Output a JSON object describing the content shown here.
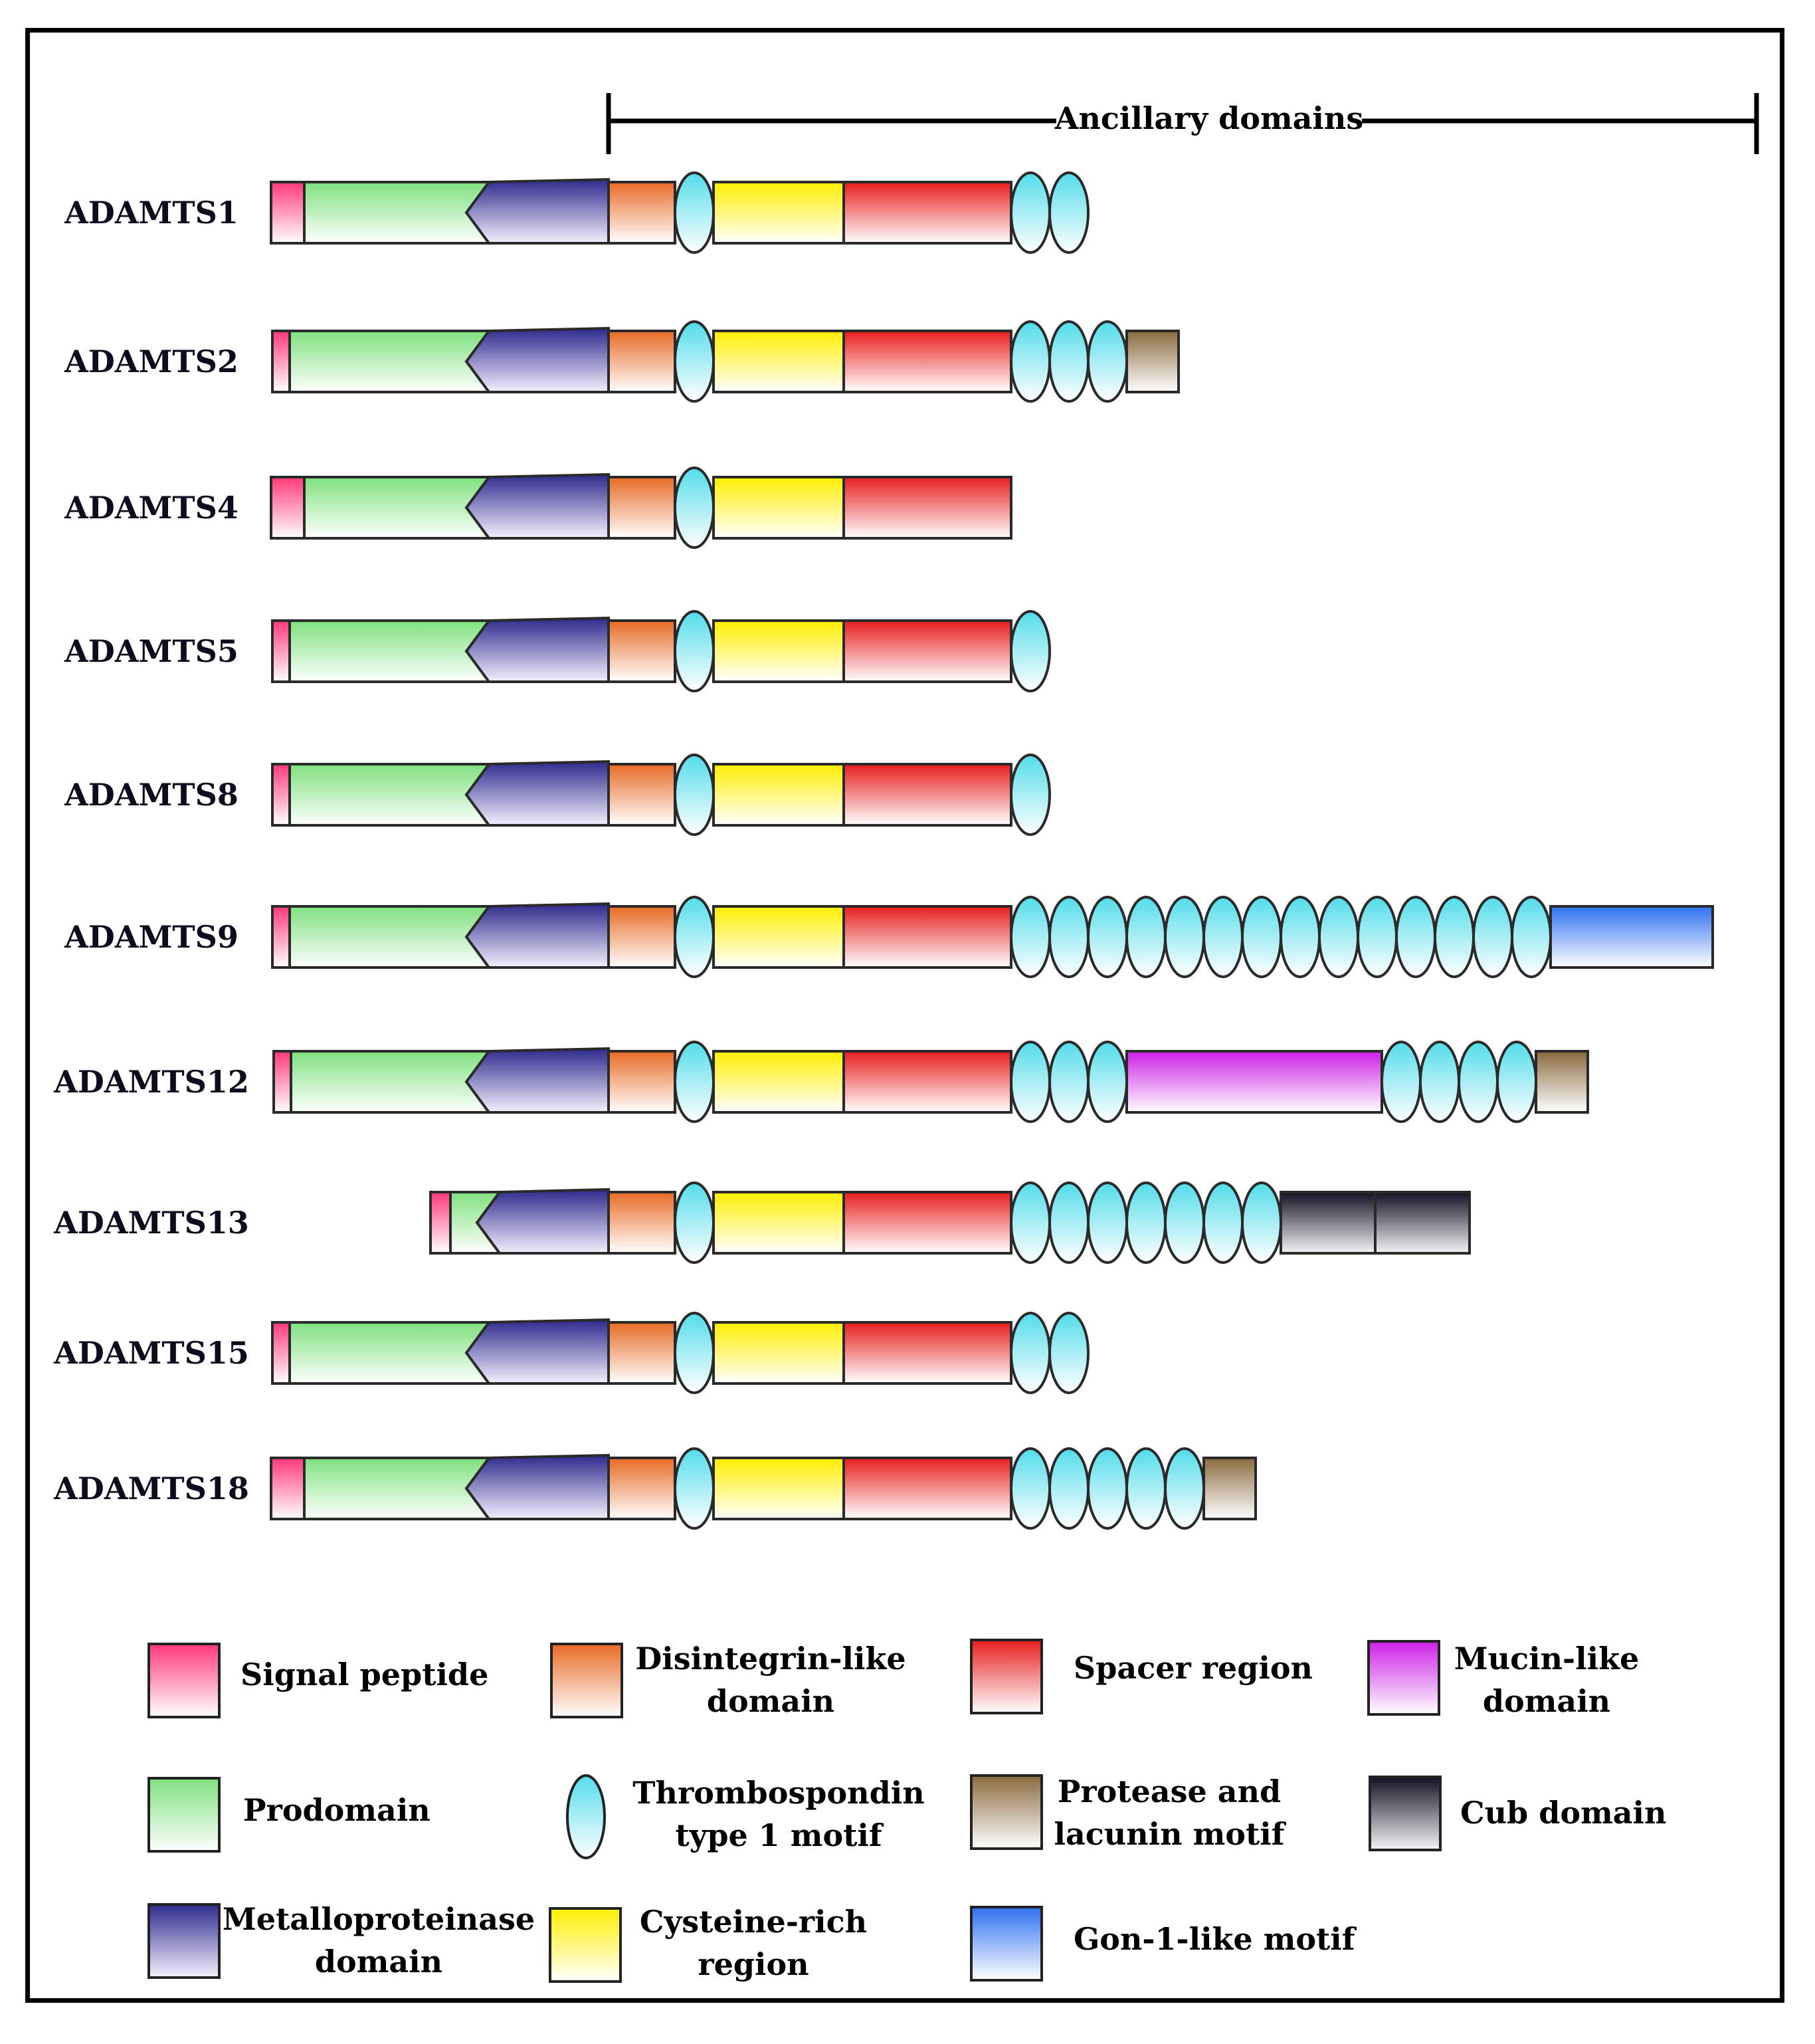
{
  "figure": {
    "ancillary_label": "Ancillary domains",
    "colors": {
      "signal_peptide": "#ff3a78",
      "prodomain": "#7fe07f",
      "metalloproteinase": "#2e2a8c",
      "disintegrin": "#e86a26",
      "cysteine_rich": "#ffee00",
      "spacer": "#e81e1e",
      "tsp1": "#53dcea",
      "plac": "#8a6a3e",
      "gon1": "#2f70f0",
      "mucin": "#cc20e6",
      "cub": "#111122"
    },
    "proteins": [
      {
        "name": "ADAMTS1",
        "domains": [
          "signal_peptide",
          "prodomain",
          "metalloproteinase",
          "disintegrin",
          "tsp1",
          "cysteine_rich",
          "spacer",
          "tsp1",
          "tsp1"
        ]
      },
      {
        "name": "ADAMTS2",
        "domains": [
          "signal_peptide",
          "prodomain",
          "metalloproteinase",
          "disintegrin",
          "tsp1",
          "cysteine_rich",
          "spacer",
          "tsp1",
          "tsp1",
          "tsp1",
          "plac"
        ]
      },
      {
        "name": "ADAMTS4",
        "domains": [
          "signal_peptide",
          "prodomain",
          "metalloproteinase",
          "disintegrin",
          "tsp1",
          "cysteine_rich",
          "spacer"
        ]
      },
      {
        "name": "ADAMTS5",
        "domains": [
          "signal_peptide",
          "prodomain",
          "metalloproteinase",
          "disintegrin",
          "tsp1",
          "cysteine_rich",
          "spacer",
          "tsp1"
        ]
      },
      {
        "name": "ADAMTS8",
        "domains": [
          "signal_peptide",
          "prodomain",
          "metalloproteinase",
          "disintegrin",
          "tsp1",
          "cysteine_rich",
          "spacer",
          "tsp1"
        ]
      },
      {
        "name": "ADAMTS9",
        "domains": [
          "signal_peptide",
          "prodomain",
          "metalloproteinase",
          "disintegrin",
          "tsp1",
          "cysteine_rich",
          "spacer",
          "tsp1",
          "tsp1",
          "tsp1",
          "tsp1",
          "tsp1",
          "tsp1",
          "tsp1",
          "tsp1",
          "tsp1",
          "tsp1",
          "tsp1",
          "tsp1",
          "tsp1",
          "tsp1",
          "gon1"
        ]
      },
      {
        "name": "ADAMTS12",
        "domains": [
          "signal_peptide",
          "prodomain",
          "metalloproteinase",
          "disintegrin",
          "tsp1",
          "cysteine_rich",
          "spacer",
          "tsp1",
          "tsp1",
          "tsp1",
          "mucin",
          "tsp1",
          "tsp1",
          "tsp1",
          "tsp1",
          "plac"
        ]
      },
      {
        "name": "ADAMTS13",
        "domains": [
          "signal_peptide",
          "prodomain",
          "metalloproteinase",
          "disintegrin",
          "tsp1",
          "cysteine_rich",
          "spacer",
          "tsp1",
          "tsp1",
          "tsp1",
          "tsp1",
          "tsp1",
          "tsp1",
          "tsp1",
          "cub",
          "cub"
        ]
      },
      {
        "name": "ADAMTS15",
        "domains": [
          "signal_peptide",
          "prodomain",
          "metalloproteinase",
          "disintegrin",
          "tsp1",
          "cysteine_rich",
          "spacer",
          "tsp1",
          "tsp1"
        ]
      },
      {
        "name": "ADAMTS18",
        "domains": [
          "signal_peptide",
          "prodomain",
          "metalloproteinase",
          "disintegrin",
          "tsp1",
          "cysteine_rich",
          "spacer",
          "tsp1",
          "tsp1",
          "tsp1",
          "tsp1",
          "tsp1",
          "plac"
        ]
      }
    ],
    "legend": [
      {
        "key": "signal_peptide",
        "lines": [
          "Signal peptide"
        ]
      },
      {
        "key": "disintegrin",
        "lines": [
          "Disintegrin-like",
          "domain"
        ]
      },
      {
        "key": "spacer",
        "lines": [
          "Spacer region"
        ]
      },
      {
        "key": "mucin",
        "lines": [
          "Mucin-like",
          "domain"
        ]
      },
      {
        "key": "prodomain",
        "lines": [
          "Prodomain"
        ]
      },
      {
        "key": "tsp1",
        "lines": [
          "Thrombospondin",
          "type 1 motif"
        ]
      },
      {
        "key": "plac",
        "lines": [
          "Protease and",
          "lacunin motif"
        ]
      },
      {
        "key": "cub",
        "lines": [
          "Cub domain"
        ]
      },
      {
        "key": "metalloproteinase",
        "lines": [
          "Metalloproteinase",
          "domain"
        ]
      },
      {
        "key": "cysteine_rich",
        "lines": [
          "Cysteine-rich",
          "region"
        ]
      },
      {
        "key": "gon1",
        "lines": [
          "Gon-1-like motif"
        ]
      }
    ]
  }
}
